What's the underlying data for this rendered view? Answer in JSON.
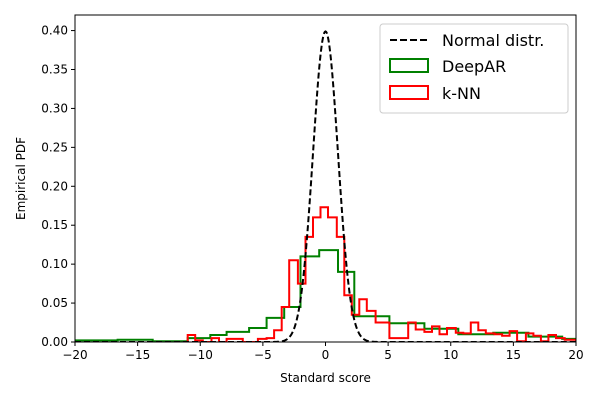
{
  "chart_data": {
    "type": "line",
    "xlabel": "Standard score",
    "ylabel": "Empirical PDF",
    "xlim": [
      -20,
      20
    ],
    "ylim": [
      0,
      0.42
    ],
    "xticks": [
      -20,
      -15,
      -10,
      -5,
      0,
      5,
      10,
      15,
      20
    ],
    "xtick_labels": [
      "−20",
      "−15",
      "−10",
      "−5",
      "0",
      "5",
      "10",
      "15",
      "20"
    ],
    "yticks": [
      0.0,
      0.05,
      0.1,
      0.15,
      0.2,
      0.25,
      0.3,
      0.35,
      0.4
    ],
    "ytick_labels": [
      "0.00",
      "0.05",
      "0.10",
      "0.15",
      "0.20",
      "0.25",
      "0.30",
      "0.35",
      "0.40"
    ],
    "grid": false,
    "legend_position": "top-right",
    "series": [
      {
        "name": "Normal distr.",
        "kind": "curve",
        "color": "#000000",
        "dash": "dashed",
        "function": "standard_normal_pdf"
      },
      {
        "name": "DeepAR",
        "kind": "step_histogram",
        "color": "#008000",
        "edges": [
          -20,
          -16.6,
          -13.8,
          -11,
          -9.2,
          -7.9,
          -6.1,
          -4.7,
          -3.3,
          -2.0,
          -1.0,
          -0.5,
          0.5,
          1.0,
          2.3,
          5.1,
          7.9,
          10.6,
          13.4,
          16.2,
          18.9,
          20
        ],
        "values": [
          0.002,
          0.003,
          0.001,
          0.005,
          0.009,
          0.013,
          0.018,
          0.031,
          0.045,
          0.11,
          0.11,
          0.118,
          0.118,
          0.09,
          0.033,
          0.024,
          0.017,
          0.01,
          0.012,
          0.007,
          0.004
        ]
      },
      {
        "name": "k-NN",
        "kind": "step_histogram",
        "color": "#ff0000",
        "edges": [
          -11,
          -10.4,
          -9.8,
          -9.1,
          -8.5,
          -7.9,
          -7.3,
          -6.6,
          -6.0,
          -5.4,
          -4.7,
          -4.1,
          -3.5,
          -2.9,
          -2.2,
          -1.6,
          -1.0,
          -0.4,
          0.2,
          0.9,
          1.5,
          2.1,
          2.7,
          3.3,
          4.0,
          5.1,
          6.6,
          7.2,
          7.9,
          8.5,
          9.1,
          9.7,
          10.4,
          11.0,
          11.6,
          12.2,
          12.8,
          13.5,
          14.1,
          14.7,
          15.3,
          16.0,
          16.6,
          17.2,
          17.8,
          18.4,
          19.1,
          20
        ],
        "values": [
          0.009,
          0.002,
          0.0,
          0.005,
          0.0,
          0.004,
          0.004,
          0.0,
          0.0,
          0.004,
          0.005,
          0.015,
          0.045,
          0.105,
          0.075,
          0.135,
          0.16,
          0.173,
          0.16,
          0.135,
          0.06,
          0.035,
          0.055,
          0.04,
          0.025,
          0.005,
          0.025,
          0.016,
          0.013,
          0.02,
          0.01,
          0.018,
          0.012,
          0.011,
          0.025,
          0.015,
          0.011,
          0.01,
          0.008,
          0.014,
          0.001,
          0.011,
          0.008,
          0.001,
          0.009,
          0.005,
          0.003
        ]
      }
    ]
  }
}
